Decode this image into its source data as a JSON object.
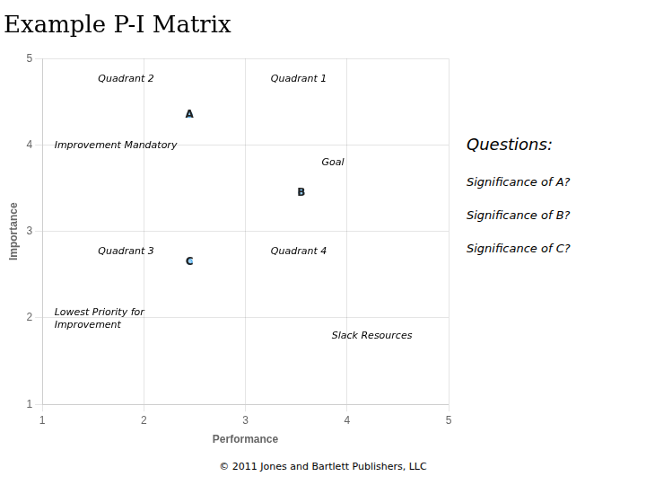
{
  "chart_data": {
    "type": "bubble",
    "title": "Example P-I Matrix",
    "xlabel": "Performance",
    "ylabel": "Importance",
    "points": [
      {
        "label": "A",
        "x": 2.45,
        "y": 4.35,
        "size": 0.32
      },
      {
        "label": "B",
        "x": 3.55,
        "y": 3.45,
        "size": 0.26
      },
      {
        "label": "C",
        "x": 2.45,
        "y": 2.65,
        "size": 0.26
      }
    ],
    "xlim": [
      1,
      5
    ],
    "ylim": [
      1,
      5
    ],
    "xticks": [
      1,
      2,
      3,
      4,
      5
    ],
    "yticks": [
      1,
      2,
      3,
      4,
      5
    ],
    "grid": true,
    "annotations": [
      {
        "text": "Quadrant 2",
        "x": 1.55,
        "y": 4.82
      },
      {
        "text": "Improvement Mandatory",
        "x": 1.12,
        "y": 4.05
      },
      {
        "text": "Quadrant 1",
        "x": 3.25,
        "y": 4.82
      },
      {
        "text": "Goal",
        "x": 3.75,
        "y": 3.85
      },
      {
        "text": "Quadrant 3",
        "x": 1.55,
        "y": 2.82
      },
      {
        "text": "Lowest Priority for\nImprovement",
        "x": 1.12,
        "y": 2.12
      },
      {
        "text": "Quadrant 4",
        "x": 3.25,
        "y": 2.82
      },
      {
        "text": "Slack Resources",
        "x": 3.85,
        "y": 1.85
      }
    ],
    "questions_label": "Questions:",
    "questions_items": [
      "Significance of A?",
      "Significance of B?",
      "Significance of C?"
    ],
    "copyright": "© 2011 Jones and Bartlett Publishers, LLC"
  }
}
